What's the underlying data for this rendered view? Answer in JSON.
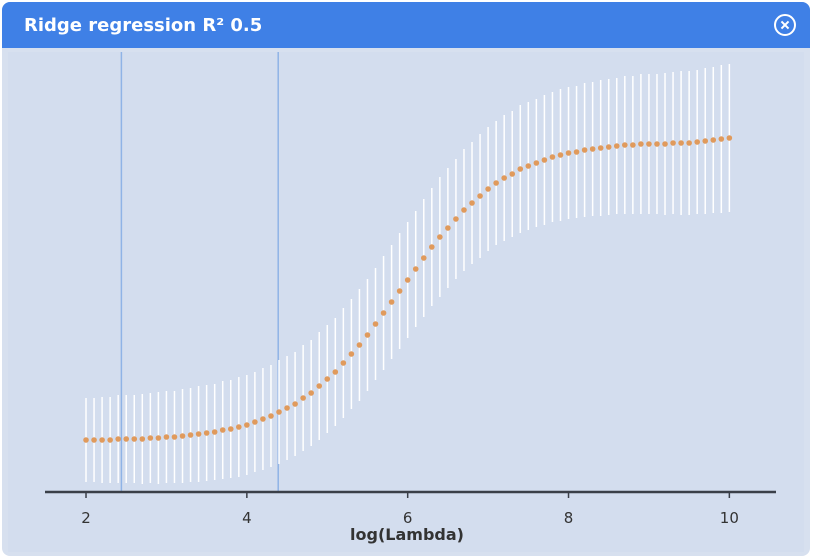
{
  "window": {
    "title": "Ridge regression R² 0.5"
  },
  "chart_data": {
    "type": "errorbar",
    "xlabel": "log(Lambda)",
    "x": [
      2.0,
      2.1,
      2.2,
      2.3,
      2.4,
      2.5,
      2.6,
      2.7,
      2.8,
      2.9,
      3.0,
      3.1,
      3.2,
      3.3,
      3.4,
      3.5,
      3.6,
      3.7,
      3.8,
      3.9,
      4.0,
      4.1,
      4.2,
      4.3,
      4.4,
      4.5,
      4.6,
      4.7,
      4.8,
      4.9,
      5.0,
      5.1,
      5.2,
      5.3,
      5.4,
      5.5,
      5.6,
      5.7,
      5.8,
      5.9,
      6.0,
      6.1,
      6.2,
      6.3,
      6.4,
      6.5,
      6.6,
      6.7,
      6.8,
      6.9,
      7.0,
      7.1,
      7.2,
      7.3,
      7.4,
      7.5,
      7.6,
      7.7,
      7.8,
      7.9,
      8.0,
      8.1,
      8.2,
      8.3,
      8.4,
      8.5,
      8.6,
      8.7,
      8.8,
      8.9,
      9.0,
      9.1,
      9.2,
      9.3,
      9.4,
      9.5,
      9.6,
      9.7,
      9.8,
      9.9,
      10.0
    ],
    "values": [
      52,
      52,
      52,
      52,
      53,
      53,
      53,
      53,
      54,
      54,
      55,
      55,
      56,
      57,
      58,
      59,
      60,
      62,
      63,
      65,
      67,
      70,
      73,
      76,
      80,
      84,
      88,
      94,
      99,
      106,
      113,
      120,
      129,
      138,
      147,
      157,
      168,
      179,
      190,
      201,
      212,
      223,
      234,
      245,
      255,
      264,
      273,
      282,
      289,
      296,
      303,
      309,
      314,
      318,
      323,
      326,
      329,
      332,
      335,
      337,
      339,
      340,
      342,
      343,
      344,
      345,
      346,
      347,
      347,
      348,
      348,
      348,
      348,
      349,
      349,
      349,
      350,
      351,
      352,
      353,
      354
    ],
    "errors": [
      42,
      42,
      43,
      43,
      44,
      44,
      44,
      45,
      45,
      46,
      46,
      46,
      47,
      47,
      48,
      48,
      48,
      49,
      49,
      50,
      50,
      50,
      51,
      51,
      52,
      52,
      52,
      53,
      53,
      54,
      54,
      54,
      55,
      55,
      56,
      56,
      56,
      57,
      57,
      58,
      58,
      58,
      59,
      59,
      60,
      60,
      60,
      61,
      61,
      62,
      62,
      62,
      63,
      63,
      64,
      64,
      64,
      65,
      65,
      66,
      66,
      66,
      67,
      67,
      68,
      68,
      68,
      69,
      69,
      70,
      70,
      70,
      71,
      71,
      72,
      72,
      72,
      73,
      73,
      74,
      74
    ],
    "color": "#e09a5c",
    "error_color": "#ffffff",
    "vlines": [
      2.44,
      4.39
    ],
    "vline_color": "#8fb3e6",
    "xlim": [
      1.49,
      10.58
    ],
    "xticks": [
      2,
      4,
      6,
      8,
      10
    ],
    "ylim": [
      0,
      440
    ]
  }
}
